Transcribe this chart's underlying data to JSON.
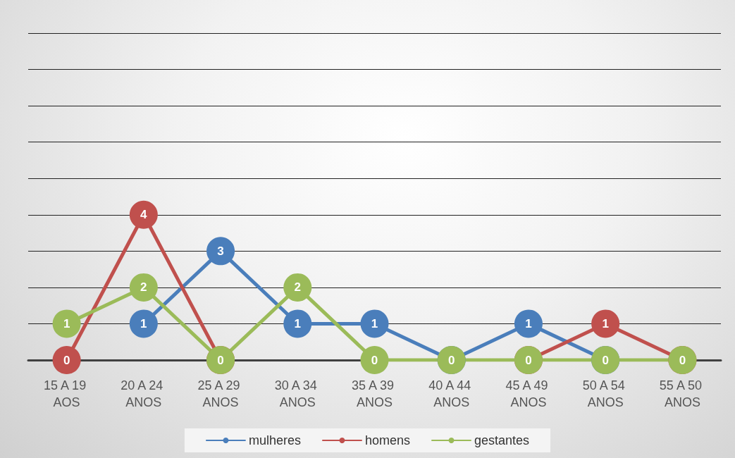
{
  "chart_data": {
    "type": "line",
    "categories": [
      "15 A 19 AOS",
      "20 A 24 ANOS",
      "25 A 29 ANOS",
      "30 A 34 ANOS",
      "35 A 39 ANOS",
      "40 A 44 ANOS",
      "45 A 49 ANOS",
      "50 A 54 ANOS",
      "55 A 50 ANOS"
    ],
    "series": [
      {
        "name": "mulheres",
        "color": "#4a7ebb",
        "values": [
          null,
          1,
          3,
          1,
          1,
          0,
          1,
          0,
          null
        ],
        "value_labels": [
          null,
          "1",
          "3",
          "1",
          "1",
          null,
          "1",
          null,
          null
        ]
      },
      {
        "name": "homens",
        "color": "#c0504d",
        "values": [
          0,
          4,
          0,
          null,
          null,
          null,
          0,
          1,
          0
        ],
        "value_labels": [
          "0",
          "4",
          null,
          null,
          null,
          null,
          null,
          "1",
          null
        ]
      },
      {
        "name": "gestantes",
        "color": "#9bbb59",
        "values": [
          1,
          2,
          0,
          2,
          0,
          0,
          0,
          0,
          0
        ],
        "value_labels": [
          "1",
          "2",
          "0",
          "2",
          "0",
          "0",
          "0",
          "0",
          "0"
        ]
      }
    ],
    "ylim": [
      0,
      9
    ],
    "yticks": [
      {
        "value": 0,
        "label": null
      },
      {
        "value": 1,
        "label": null
      },
      {
        "value": 2,
        "label": null
      },
      {
        "value": 3,
        "label": null
      },
      {
        "value": 4,
        "label": null
      },
      {
        "value": 5,
        "label": null
      },
      {
        "value": 6,
        "label": null
      },
      {
        "value": 7,
        "label": null
      },
      {
        "value": 8,
        "label": null
      },
      {
        "value": 9,
        "label": null
      }
    ],
    "tick_labels": "x",
    "grid": "y",
    "legend": "bottom",
    "marker": "circle",
    "line_style": "solid"
  }
}
